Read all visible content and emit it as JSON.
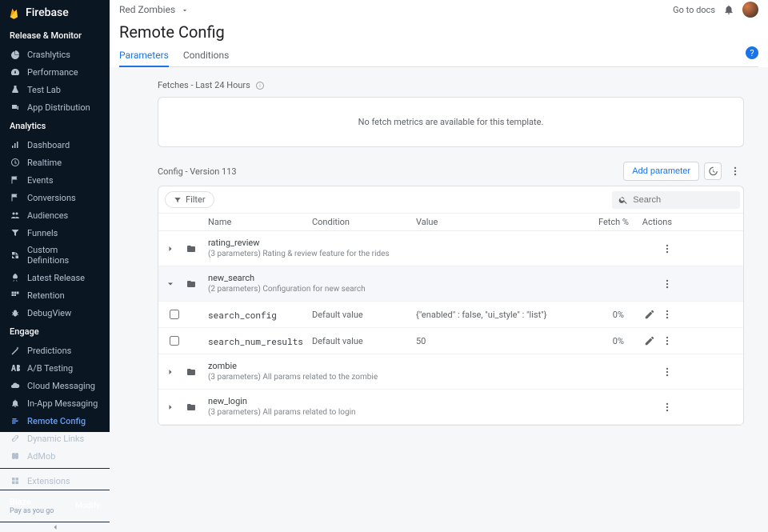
{
  "brand": "Firebase",
  "topbar": {
    "project": "Red Zombies",
    "docs": "Go to docs"
  },
  "page": {
    "title": "Remote Config",
    "tabs": [
      "Parameters",
      "Conditions"
    ]
  },
  "sidebar": {
    "sections": [
      {
        "heading": "Release & Monitor",
        "items": [
          {
            "label": "Crashlytics",
            "icon": "pie"
          },
          {
            "label": "Performance",
            "icon": "gauge"
          },
          {
            "label": "Test Lab",
            "icon": "flask"
          },
          {
            "label": "App Distribution",
            "icon": "devices"
          }
        ]
      },
      {
        "heading": "Analytics",
        "items": [
          {
            "label": "Dashboard",
            "icon": "bars"
          },
          {
            "label": "Realtime",
            "icon": "clock"
          },
          {
            "label": "Events",
            "icon": "flag"
          },
          {
            "label": "Conversions",
            "icon": "flag"
          },
          {
            "label": "Audiences",
            "icon": "people"
          },
          {
            "label": "Funnels",
            "icon": "funnel"
          },
          {
            "label": "Custom Definitions",
            "icon": "custom"
          },
          {
            "label": "Latest Release",
            "icon": "rocket"
          },
          {
            "label": "Retention",
            "icon": "retention"
          },
          {
            "label": "DebugView",
            "icon": "bug"
          }
        ]
      },
      {
        "heading": "Engage",
        "items": [
          {
            "label": "Predictions",
            "icon": "wand"
          },
          {
            "label": "A/B Testing",
            "icon": "ab"
          },
          {
            "label": "Cloud Messaging",
            "icon": "cloud"
          },
          {
            "label": "In-App Messaging",
            "icon": "bell"
          },
          {
            "label": "Remote Config",
            "icon": "remote",
            "active": true
          },
          {
            "label": "Dynamic Links",
            "icon": "link"
          },
          {
            "label": "AdMob",
            "icon": "admob"
          }
        ]
      }
    ],
    "extensions": "Extensions",
    "plan": {
      "name": "Blaze",
      "sub": "Pay as you go",
      "modify": "Modify"
    }
  },
  "content": {
    "fetches_label": "Fetches - Last 24 Hours",
    "no_metrics": "No fetch metrics are available for this template.",
    "config_version": "Config - Version 113",
    "add_param": "Add parameter",
    "filter_label": "Filter",
    "search_placeholder": "Search",
    "columns": {
      "name": "Name",
      "condition": "Condition",
      "value": "Value",
      "fetch": "Fetch %",
      "actions": "Actions"
    },
    "groups": [
      {
        "name": "rating_review",
        "desc": "(3 parameters) Rating & review feature for the rides",
        "expanded": false
      },
      {
        "name": "new_search",
        "desc": "(2 parameters) Configuration for new search",
        "expanded": true,
        "params": [
          {
            "name": "search_config",
            "condition": "Default value",
            "value": "{\"enabled\" : false, \"ui_style\" : \"list\"}",
            "fetch": "0%"
          },
          {
            "name": "search_num_results",
            "condition": "Default value",
            "value": "50",
            "fetch": "0%"
          }
        ]
      },
      {
        "name": "zombie",
        "desc": "(3 parameters) All params related to the zombie",
        "expanded": false
      },
      {
        "name": "new_login",
        "desc": "(3 parameters) All params related to login",
        "expanded": false
      }
    ]
  },
  "colors": {
    "accent": "#1a73e8",
    "sidebar_bg": "#0b1623",
    "text_muted": "#5f6368"
  }
}
